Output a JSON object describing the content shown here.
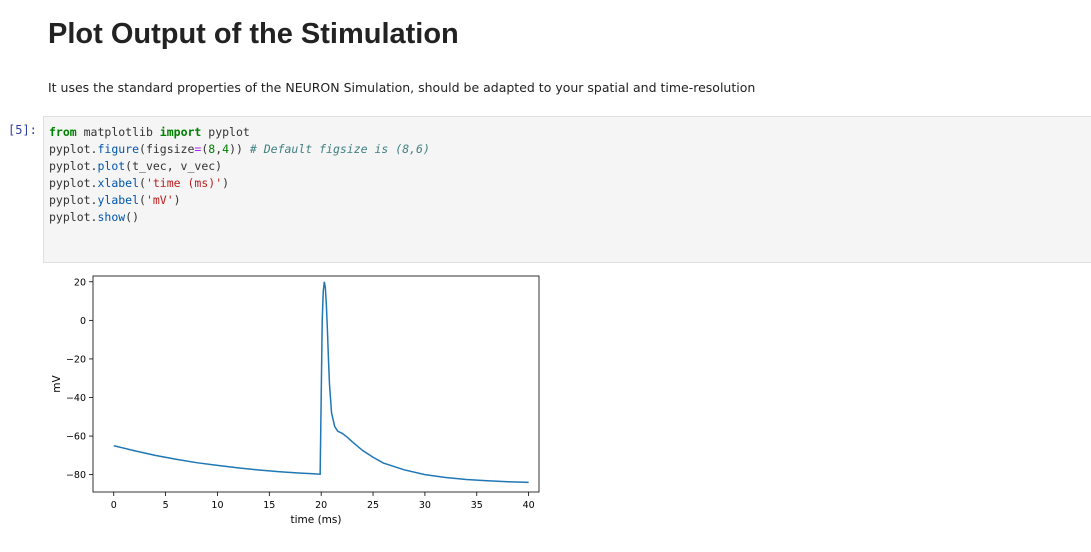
{
  "heading": "Plot Output of the Stimulation",
  "description": "It uses the standard properties of the NEURON Simulation, should be adapted to your spatial and time-resolution",
  "cell": {
    "prompt": "[5]:",
    "code": {
      "l1_from": "from",
      "l1_mod": " matplotlib ",
      "l1_import": "import",
      "l1_name": " pyplot",
      "l2_a": "pyplot.",
      "l2_fn": "figure",
      "l2_b": "(figsize",
      "l2_eq": "=",
      "l2_c": "(",
      "l2_n1": "8",
      "l2_d": ",",
      "l2_n2": "4",
      "l2_e": ")) ",
      "l2_comment": "# Default figsize is (8,6)",
      "l3_a": "pyplot.",
      "l3_fn": "plot",
      "l3_b": "(t_vec, v_vec)",
      "l4_a": "pyplot.",
      "l4_fn": "xlabel",
      "l4_b": "(",
      "l4_str": "'time (ms)'",
      "l4_c": ")",
      "l5_a": "pyplot.",
      "l5_fn": "ylabel",
      "l5_b": "(",
      "l5_str": "'mV'",
      "l5_c": ")",
      "l6_a": "pyplot.",
      "l6_fn": "show",
      "l6_b": "()"
    }
  },
  "chart_data": {
    "type": "line",
    "xlabel": "time (ms)",
    "ylabel": "mV",
    "xlim": [
      -2,
      41
    ],
    "ylim": [
      -89,
      23
    ],
    "xticks": [
      0,
      5,
      10,
      15,
      20,
      25,
      30,
      35,
      40
    ],
    "yticks": [
      -80,
      -60,
      -40,
      -20,
      0,
      20
    ],
    "line_color": "#1f77b4",
    "series": [
      {
        "x": [
          0,
          2,
          4,
          6,
          8,
          10,
          12,
          14,
          16,
          18,
          19,
          19.9,
          20.0,
          20.1,
          20.2,
          20.3,
          20.4,
          20.5,
          20.6,
          20.7,
          20.8,
          21,
          21.3,
          21.6,
          22,
          22.5,
          23,
          24,
          25,
          26,
          28,
          30,
          32,
          34,
          36,
          38,
          40
        ],
        "y": [
          -65,
          -67.6,
          -70,
          -72,
          -73.8,
          -75.2,
          -76.5,
          -77.6,
          -78.5,
          -79.2,
          -79.5,
          -79.8,
          -40,
          0,
          15,
          20,
          17,
          8,
          -5,
          -20,
          -33,
          -48,
          -55,
          -57.5,
          -58.5,
          -60.5,
          -63,
          -67.5,
          -71,
          -74,
          -77.5,
          -80,
          -81.5,
          -82.5,
          -83.2,
          -83.7,
          -84
        ]
      }
    ]
  }
}
